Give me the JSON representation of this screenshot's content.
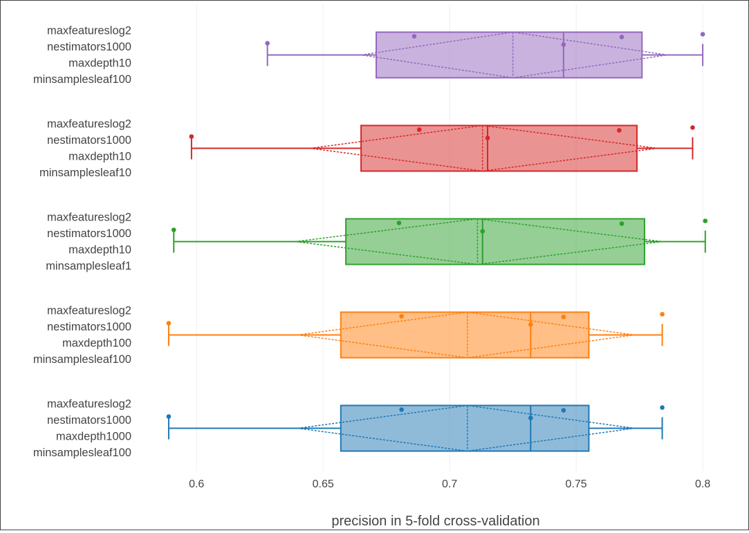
{
  "chart_data": {
    "type": "box",
    "orientation": "horizontal",
    "xlabel": "precision in 5-fold cross-validation",
    "xlim": [
      0.58,
      0.815
    ],
    "xticks": [
      0.6,
      0.65,
      0.7,
      0.75,
      0.8
    ],
    "xtick_labels": [
      "0.6",
      "0.65",
      "0.7",
      "0.75",
      "0.8"
    ],
    "grid": "vertical",
    "show_mean_sd": true,
    "show_points": true,
    "series": [
      {
        "label_lines": [
          "maxfeatureslog2",
          "nestimators1000",
          "maxdepth10",
          "minsamplesleaf100"
        ],
        "color": "#9467bd",
        "fill": "rgba(148,103,189,0.5)",
        "points": [
          0.628,
          0.686,
          0.745,
          0.768,
          0.8
        ],
        "min": 0.628,
        "q1": 0.671,
        "median": 0.745,
        "q3": 0.776,
        "max": 0.8,
        "mean": 0.725,
        "mean_minus_sd": 0.665,
        "mean_plus_sd": 0.786
      },
      {
        "label_lines": [
          "maxfeatureslog2",
          "nestimators1000",
          "maxdepth10",
          "minsamplesleaf10"
        ],
        "color": "#d62728",
        "fill": "rgba(214,39,40,0.5)",
        "points": [
          0.598,
          0.688,
          0.715,
          0.767,
          0.796
        ],
        "min": 0.598,
        "q1": 0.665,
        "median": 0.715,
        "q3": 0.774,
        "max": 0.796,
        "mean": 0.713,
        "mean_minus_sd": 0.645,
        "mean_plus_sd": 0.782
      },
      {
        "label_lines": [
          "maxfeatureslog2",
          "nestimators1000",
          "maxdepth10",
          "minsamplesleaf1"
        ],
        "color": "#2ca02c",
        "fill": "rgba(44,160,44,0.5)",
        "points": [
          0.591,
          0.68,
          0.713,
          0.768,
          0.801
        ],
        "min": 0.591,
        "q1": 0.659,
        "median": 0.713,
        "q3": 0.777,
        "max": 0.801,
        "mean": 0.711,
        "mean_minus_sd": 0.639,
        "mean_plus_sd": 0.784
      },
      {
        "label_lines": [
          "maxfeatureslog2",
          "nestimators1000",
          "maxdepth100",
          "minsamplesleaf100"
        ],
        "color": "#ff7f0e",
        "fill": "rgba(255,127,14,0.5)",
        "points": [
          0.589,
          0.681,
          0.732,
          0.745,
          0.784
        ],
        "min": 0.589,
        "q1": 0.657,
        "median": 0.732,
        "q3": 0.755,
        "max": 0.784,
        "mean": 0.707,
        "mean_minus_sd": 0.64,
        "mean_plus_sd": 0.773
      },
      {
        "label_lines": [
          "maxfeatureslog2",
          "nestimators1000",
          "maxdepth1000",
          "minsamplesleaf100"
        ],
        "color": "#1f77b4",
        "fill": "rgba(31,119,180,0.5)",
        "points": [
          0.589,
          0.681,
          0.732,
          0.745,
          0.784
        ],
        "min": 0.589,
        "q1": 0.657,
        "median": 0.732,
        "q3": 0.755,
        "max": 0.784,
        "mean": 0.707,
        "mean_minus_sd": 0.64,
        "mean_plus_sd": 0.773
      }
    ]
  }
}
